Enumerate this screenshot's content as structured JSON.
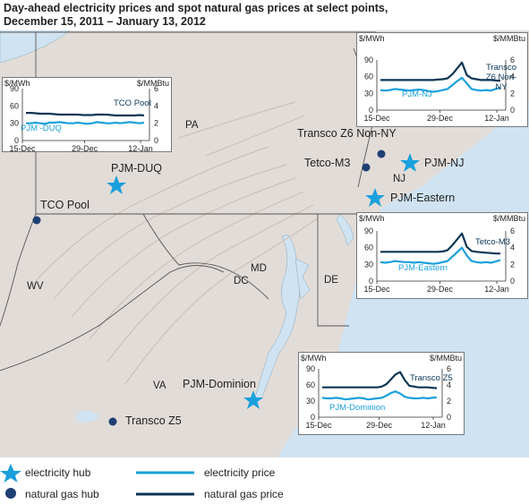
{
  "title_line1": "Day-ahead electricity prices and spot natural gas prices at select points,",
  "title_line2": "December 15, 2011 – January 13, 2012",
  "map_labels": {
    "pa": "PA",
    "nj": "NJ",
    "md": "MD",
    "dc": "DC",
    "de": "DE",
    "wv": "WV",
    "va": "VA",
    "pjm_duq": "PJM-DUQ",
    "tco_pool": "TCO Pool",
    "transco_z6": "Transco Z6 Non-NY",
    "tetco_m3": "Tetco-M3",
    "pjm_nj": "PJM-NJ",
    "pjm_eastern": "PJM-Eastern",
    "pjm_dominion": "PJM-Dominion",
    "transco_z5": "Transco Z5"
  },
  "legend": {
    "electricity_hub": "electricity hub",
    "natural_gas_hub": "natural gas hub",
    "electricity_price": "electricity price",
    "natural_gas_price": "natural gas price",
    "electricity_color": "#1aa0dc",
    "gas_color": "#0b3654"
  },
  "chart_data": [
    {
      "type": "line",
      "id": "duq",
      "ylabel_left": "$/MWh",
      "ylabel_right": "$/MMBtu",
      "yticks_left": [
        "90",
        "60",
        "30",
        "0"
      ],
      "yticks_right": [
        "6",
        "4",
        "2",
        "0"
      ],
      "xticks": [
        "15-Dec",
        "29-Dec",
        "12-Jan"
      ],
      "ylim_left": [
        0,
        90
      ],
      "ylim_right": [
        0,
        6
      ],
      "series": [
        {
          "name": "PJM -DUQ",
          "axis": "left",
          "color": "#1aa0dc",
          "values": [
            30,
            30,
            31,
            30,
            29,
            31,
            31,
            32,
            31,
            30,
            30,
            31,
            30,
            29,
            30,
            32,
            31,
            30,
            30,
            31,
            30,
            31,
            32,
            31,
            30,
            31
          ]
        },
        {
          "name": "TCO Pool",
          "axis": "right",
          "color": "#0b3654",
          "values": [
            3.2,
            3.2,
            3.15,
            3.1,
            3.1,
            3.1,
            3.05,
            3.0,
            3.0,
            3.0,
            3.0,
            3.0,
            2.95,
            2.95,
            2.95,
            3.0,
            3.0,
            3.0,
            2.95,
            2.9,
            2.9,
            2.9,
            2.9,
            2.9,
            2.95,
            2.9
          ]
        }
      ]
    },
    {
      "type": "line",
      "id": "nj",
      "ylabel_left": "$/MWh",
      "ylabel_right": "$/MMBtu",
      "yticks_left": [
        "90",
        "60",
        "30",
        "0"
      ],
      "yticks_right": [
        "6",
        "4",
        "2",
        "0"
      ],
      "xticks": [
        "15-Dec",
        "29-Dec",
        "12-Jan"
      ],
      "ylim_left": [
        0,
        90
      ],
      "ylim_right": [
        0,
        6
      ],
      "series": [
        {
          "name": "PJM-NJ",
          "axis": "left",
          "color": "#1aa0dc",
          "values": [
            36,
            35,
            36,
            38,
            37,
            36,
            35,
            36,
            37,
            36,
            34,
            33,
            34,
            36,
            38,
            45,
            52,
            58,
            48,
            38,
            36,
            35,
            36,
            35,
            38,
            40
          ]
        },
        {
          "name": "Transco Z6 Non-NY",
          "axis": "right",
          "color": "#0b3654",
          "values": [
            3.6,
            3.6,
            3.6,
            3.6,
            3.6,
            3.6,
            3.6,
            3.6,
            3.6,
            3.6,
            3.6,
            3.6,
            3.65,
            3.7,
            3.8,
            4.3,
            5.0,
            5.7,
            4.2,
            3.8,
            3.7,
            3.6,
            3.6,
            3.6,
            3.55,
            3.5
          ]
        }
      ]
    },
    {
      "type": "line",
      "id": "eastern",
      "ylabel_left": "$/MWh",
      "ylabel_right": "$/MMBtu",
      "yticks_left": [
        "90",
        "60",
        "30",
        "0"
      ],
      "yticks_right": [
        "6",
        "4",
        "2",
        "0"
      ],
      "xticks": [
        "15-Dec",
        "29-Dec",
        "12-Jan"
      ],
      "ylim_left": [
        0,
        90
      ],
      "ylim_right": [
        0,
        6
      ],
      "series": [
        {
          "name": "PJM-Eastern",
          "axis": "left",
          "color": "#1aa0dc",
          "values": [
            34,
            33,
            34,
            36,
            35,
            34,
            34,
            33,
            34,
            33,
            32,
            31,
            32,
            34,
            36,
            44,
            52,
            60,
            46,
            36,
            34,
            33,
            34,
            33,
            35,
            38
          ]
        },
        {
          "name": "Tetco-M3",
          "axis": "right",
          "color": "#0b3654",
          "values": [
            3.5,
            3.5,
            3.5,
            3.5,
            3.5,
            3.5,
            3.5,
            3.5,
            3.5,
            3.5,
            3.5,
            3.5,
            3.5,
            3.55,
            3.7,
            4.3,
            5.0,
            5.7,
            4.1,
            3.6,
            3.5,
            3.45,
            3.4,
            3.35,
            3.3,
            3.3
          ]
        }
      ]
    },
    {
      "type": "line",
      "id": "dominion",
      "ylabel_left": "$/MWh",
      "ylabel_right": "$/MMBtu",
      "yticks_left": [
        "90",
        "60",
        "30",
        "0"
      ],
      "yticks_right": [
        "6",
        "4",
        "2",
        "0"
      ],
      "xticks": [
        "15-Dec",
        "29-Dec",
        "12-Jan"
      ],
      "ylim_left": [
        0,
        90
      ],
      "ylim_right": [
        0,
        6
      ],
      "series": [
        {
          "name": "PJM-Dominion",
          "axis": "left",
          "color": "#1aa0dc",
          "values": [
            36,
            35,
            35,
            36,
            35,
            33,
            34,
            35,
            36,
            35,
            33,
            34,
            35,
            36,
            40,
            45,
            48,
            44,
            38,
            36,
            35,
            35,
            36,
            35,
            36,
            37
          ]
        },
        {
          "name": "Transco Z5",
          "axis": "right",
          "color": "#0b3654",
          "values": [
            3.7,
            3.7,
            3.7,
            3.7,
            3.7,
            3.7,
            3.7,
            3.7,
            3.7,
            3.7,
            3.7,
            3.7,
            3.7,
            3.8,
            4.1,
            4.7,
            5.3,
            5.6,
            4.6,
            3.9,
            3.8,
            3.7,
            3.7,
            3.7,
            3.65,
            3.6
          ]
        }
      ]
    }
  ]
}
